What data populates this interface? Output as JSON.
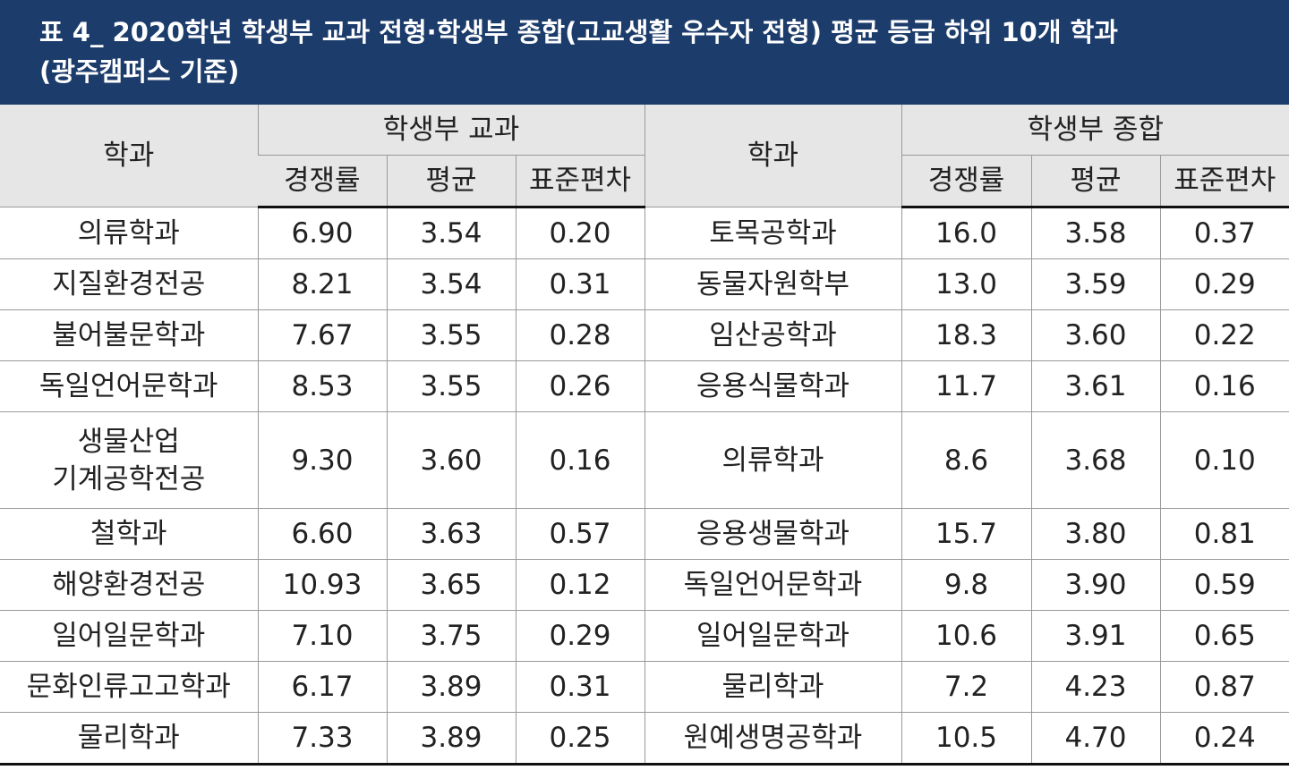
{
  "header": {
    "title": [
      "표 4_ 2020학년 학생부 교과 전형·학생부 종합(고교생활 우수자 전형) 평균 등급 하위 10개 학과",
      "(광주캠퍼스 기준)"
    ]
  },
  "table": {
    "group_header": {
      "dept_left": "학과",
      "group_left": "학생부 교과",
      "dept_right": "학과",
      "group_right": "학생부 종합"
    },
    "sub_header": [
      "경쟁률",
      "평균",
      "표준편차",
      "경쟁률",
      "평균",
      "표준편차"
    ],
    "rows": [
      [
        "의류학과",
        "6.90",
        "3.54",
        "0.20",
        "토목공학과",
        "16.0",
        "3.58",
        "0.37"
      ],
      [
        "지질환경전공",
        "8.21",
        "3.54",
        "0.31",
        "동물자원학부",
        "13.0",
        "3.59",
        "0.29"
      ],
      [
        "불어불문학과",
        "7.67",
        "3.55",
        "0.28",
        "임산공학과",
        "18.3",
        "3.60",
        "0.22"
      ],
      [
        "독일언어문학과",
        "8.53",
        "3.55",
        "0.26",
        "응용식물학과",
        "11.7",
        "3.61",
        "0.16"
      ],
      [
        "생물산업\n기계공학전공",
        "9.30",
        "3.60",
        "0.16",
        "의류학과",
        "8.6",
        "3.68",
        "0.10"
      ],
      [
        "철학과",
        "6.60",
        "3.63",
        "0.57",
        "응용생물학과",
        "15.7",
        "3.80",
        "0.81"
      ],
      [
        "해양환경전공",
        "10.93",
        "3.65",
        "0.12",
        "독일언어문학과",
        "9.8",
        "3.90",
        "0.59"
      ],
      [
        "일어일문학과",
        "7.10",
        "3.75",
        "0.29",
        "일어일문학과",
        "10.6",
        "3.91",
        "0.65"
      ],
      [
        "문화인류고고학과",
        "6.17",
        "3.89",
        "0.31",
        "물리학과",
        "7.2",
        "4.23",
        "0.87"
      ],
      [
        "물리학과",
        "7.33",
        "3.89",
        "0.25",
        "원예생명공학과",
        "10.5",
        "4.70",
        "0.24"
      ]
    ]
  }
}
